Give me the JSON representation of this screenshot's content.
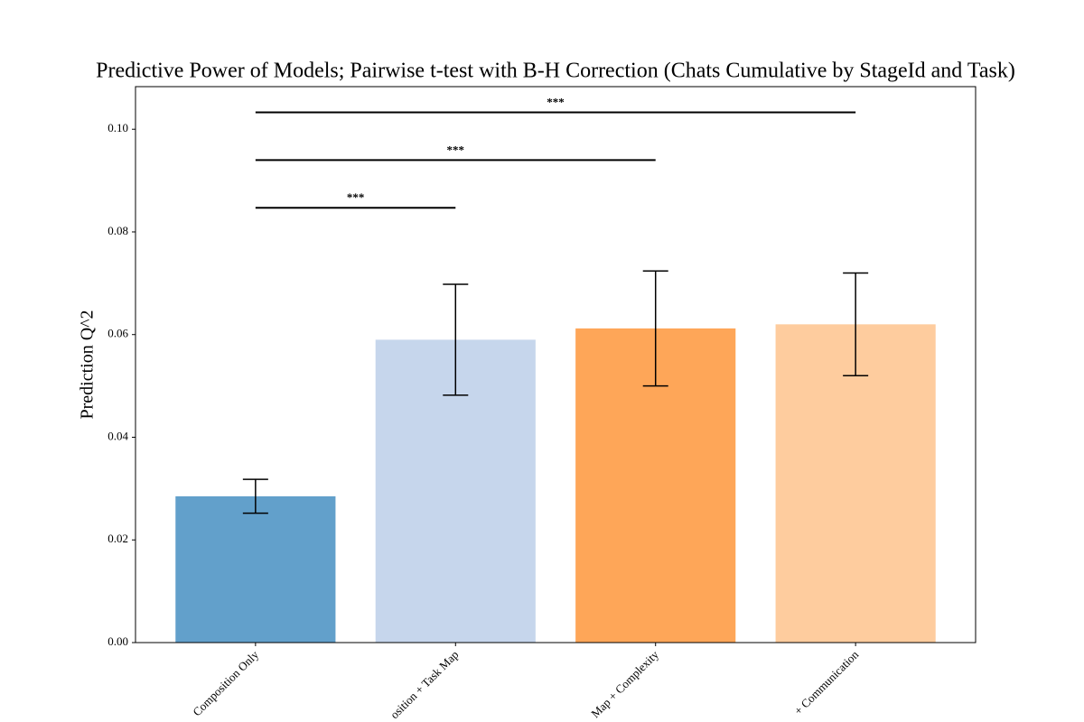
{
  "chart_data": {
    "type": "bar",
    "title": "Predictive Power of Models; Pairwise t-test with B-H Correction (Chats Cumulative by StageId and Task)",
    "y_label": "Prediction Q^2",
    "categories": [
      "Composition Only",
      "osition + Task Map",
      "Map + Complexity",
      "+ Communication"
    ],
    "values": [
      0.0285,
      0.059,
      0.0612,
      0.062
    ],
    "errors": [
      0.0033,
      0.0108,
      0.0112,
      0.01
    ],
    "colors": [
      "#62a0cb",
      "#c6d6ec",
      "#fea658",
      "#fecc9e"
    ],
    "ylim": [
      0,
      0.1083
    ],
    "yticks": [
      {
        "value": 0,
        "label": "0.00"
      },
      {
        "value": 0.02,
        "label": "0.02"
      },
      {
        "value": 0.04,
        "label": "0.04"
      },
      {
        "value": 0.06,
        "label": "0.06"
      },
      {
        "value": 0.08,
        "label": "0.08"
      },
      {
        "value": 0.1,
        "label": "0.10"
      }
    ],
    "comparisons": [
      {
        "categories": [
          0,
          1
        ],
        "y": 0.0847,
        "label": "***"
      },
      {
        "categories": [
          0,
          2
        ],
        "y": 0.094,
        "label": "***"
      },
      {
        "categories": [
          0,
          3
        ],
        "y": 0.1033,
        "label": "***"
      }
    ]
  }
}
